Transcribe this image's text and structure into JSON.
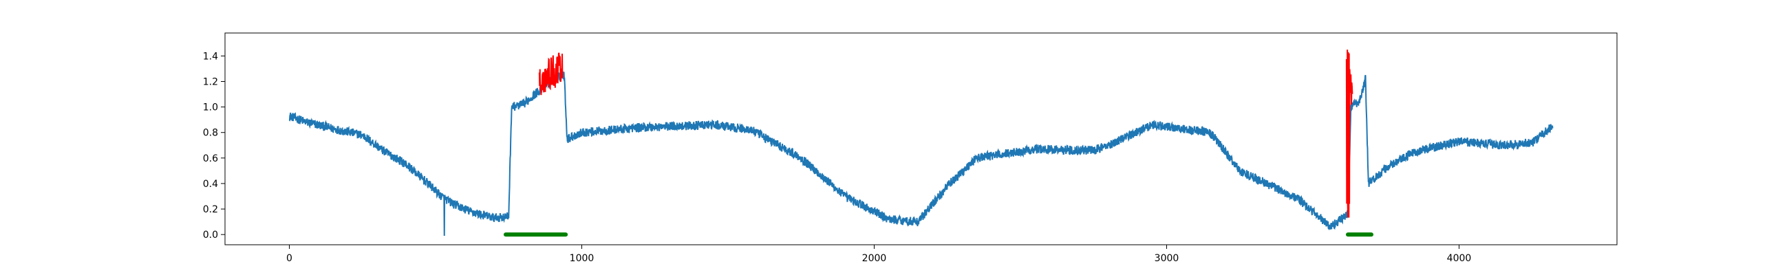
{
  "colors": {
    "background": "#ffffff",
    "series_main": "#1f77b4",
    "series_anomaly": "#ff0000",
    "series_label": "#008000",
    "axis": "#000000"
  },
  "chart_data": {
    "type": "line",
    "title": "",
    "xlabel": "",
    "ylabel": "",
    "xlim": [
      -220,
      4540
    ],
    "ylim": [
      -0.08,
      1.58
    ],
    "grid": false,
    "x_ticks": [
      0,
      1000,
      2000,
      3000,
      4000
    ],
    "y_ticks": [
      0.0,
      0.2,
      0.4,
      0.6,
      0.8,
      1.0,
      1.2,
      1.4
    ],
    "x_tick_labels": [
      "0",
      "1000",
      "2000",
      "3000",
      "4000"
    ],
    "y_tick_labels": [
      "0.0",
      "0.2",
      "0.4",
      "0.6",
      "0.8",
      "1.0",
      "1.2",
      "1.4"
    ],
    "series": [
      {
        "role": "signal",
        "color": "#1f77b4",
        "x_start": 0,
        "x_end": 4320,
        "points": 4320,
        "shape_keypoints": [
          [
            0,
            0.93
          ],
          [
            60,
            0.88
          ],
          [
            150,
            0.83
          ],
          [
            250,
            0.78
          ],
          [
            320,
            0.66
          ],
          [
            400,
            0.55
          ],
          [
            460,
            0.43
          ],
          [
            520,
            0.3
          ],
          [
            560,
            0.24
          ],
          [
            620,
            0.18
          ],
          [
            700,
            0.13
          ],
          [
            750,
            0.14
          ],
          [
            760,
            1.0
          ],
          [
            800,
            1.02
          ],
          [
            850,
            1.12
          ],
          [
            900,
            1.22
          ],
          [
            940,
            1.25
          ],
          [
            950,
            0.75
          ],
          [
            1000,
            0.8
          ],
          [
            1200,
            0.84
          ],
          [
            1450,
            0.86
          ],
          [
            1580,
            0.82
          ],
          [
            1750,
            0.6
          ],
          [
            1900,
            0.3
          ],
          [
            2050,
            0.12
          ],
          [
            2150,
            0.1
          ],
          [
            2250,
            0.38
          ],
          [
            2350,
            0.6
          ],
          [
            2550,
            0.67
          ],
          [
            2750,
            0.66
          ],
          [
            2800,
            0.7
          ],
          [
            2950,
            0.86
          ],
          [
            3150,
            0.8
          ],
          [
            3250,
            0.5
          ],
          [
            3450,
            0.28
          ],
          [
            3560,
            0.06
          ],
          [
            3620,
            0.16
          ],
          [
            3630,
            1.0
          ],
          [
            3660,
            1.05
          ],
          [
            3680,
            1.22
          ],
          [
            3690,
            0.4
          ],
          [
            3750,
            0.52
          ],
          [
            3850,
            0.65
          ],
          [
            4000,
            0.73
          ],
          [
            4150,
            0.7
          ],
          [
            4250,
            0.72
          ],
          [
            4320,
            0.85
          ]
        ],
        "noise_amplitude": 0.035
      },
      {
        "role": "anomaly",
        "color": "#ff0000",
        "segments": [
          {
            "x": [
              855,
              935
            ],
            "y_range": [
              1.05,
              1.5
            ]
          },
          {
            "x": [
              3615,
              3635
            ],
            "y_range": [
              0.1,
              1.52
            ]
          }
        ]
      },
      {
        "role": "label",
        "color": "#008000",
        "segments": [
          {
            "x": [
              740,
              945
            ],
            "y": 0.0
          },
          {
            "x": [
              3620,
              3700
            ],
            "y": 0.0
          }
        ]
      }
    ]
  }
}
